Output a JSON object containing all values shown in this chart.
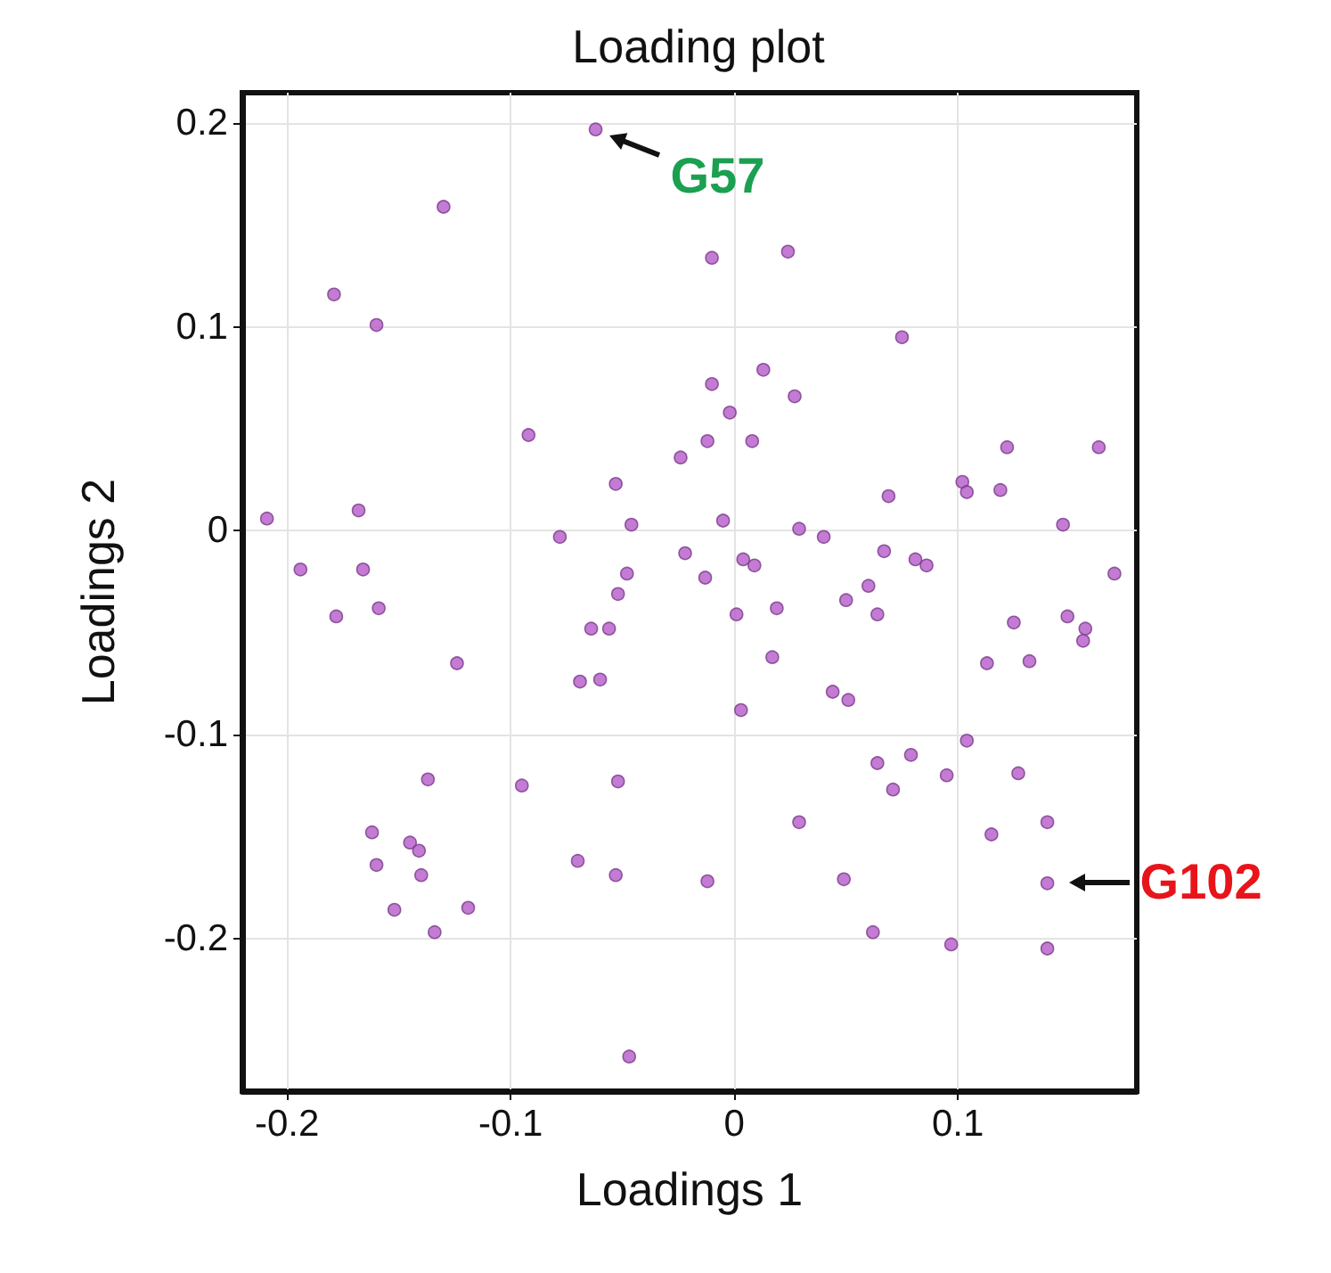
{
  "chart_data": {
    "type": "scatter",
    "title": "Loading plot",
    "xlabel": "Loadings 1",
    "ylabel": "Loadings 2",
    "xlim": [
      -0.22,
      0.18
    ],
    "ylim": [
      -0.275,
      0.215
    ],
    "xticks": [
      -0.2,
      -0.1,
      0,
      0.1
    ],
    "yticks": [
      -0.2,
      -0.1,
      0,
      0.1,
      0.2
    ],
    "grid": true,
    "marker": "circle",
    "annotations": [
      {
        "text": "G57",
        "x": -0.062,
        "y": 0.197
      },
      {
        "text": "G102",
        "x": 0.14,
        "y": -0.173
      }
    ],
    "series": [
      {
        "color": "#b45ac8",
        "x": [
          -0.062,
          -0.13,
          -0.179,
          -0.16,
          -0.092,
          -0.024,
          -0.053,
          -0.209,
          -0.168,
          -0.046,
          -0.078,
          -0.194,
          -0.166,
          -0.022,
          -0.048,
          -0.01,
          0.024,
          0.075,
          -0.01,
          0.013,
          0.027,
          -0.002,
          -0.012,
          0.008,
          0.122,
          0.163,
          0.102,
          0.104,
          0.119,
          0.069,
          0.147,
          -0.005,
          0.029,
          0.04,
          0.067,
          0.081,
          0.086,
          0.004,
          0.009,
          -0.013,
          0.06,
          0.17,
          -0.052,
          -0.178,
          -0.159,
          -0.064,
          -0.056,
          -0.124,
          -0.069,
          -0.06,
          -0.137,
          -0.095,
          -0.052,
          -0.162,
          -0.145,
          -0.141,
          -0.16,
          -0.14,
          -0.07,
          -0.053,
          -0.152,
          -0.119,
          -0.134,
          -0.047,
          0.001,
          0.019,
          0.05,
          0.064,
          0.125,
          0.149,
          0.157,
          0.156,
          0.017,
          0.113,
          0.132,
          0.044,
          0.051,
          0.003,
          0.104,
          0.064,
          0.079,
          0.095,
          0.127,
          0.071,
          0.029,
          0.115,
          0.14,
          -0.012,
          0.049,
          0.14,
          0.062,
          0.097,
          0.14
        ],
        "values": [
          0.197,
          0.159,
          0.116,
          0.101,
          0.047,
          0.036,
          0.023,
          0.006,
          0.01,
          0.003,
          -0.003,
          -0.019,
          -0.019,
          -0.011,
          -0.021,
          0.134,
          0.137,
          0.095,
          0.072,
          0.079,
          0.066,
          0.058,
          0.044,
          0.044,
          0.041,
          0.041,
          0.024,
          0.019,
          0.02,
          0.017,
          0.003,
          0.005,
          0.001,
          -0.003,
          -0.01,
          -0.014,
          -0.017,
          -0.014,
          -0.017,
          -0.023,
          -0.027,
          -0.021,
          -0.031,
          -0.042,
          -0.038,
          -0.048,
          -0.048,
          -0.065,
          -0.074,
          -0.073,
          -0.122,
          -0.125,
          -0.123,
          -0.148,
          -0.153,
          -0.157,
          -0.164,
          -0.169,
          -0.162,
          -0.169,
          -0.186,
          -0.185,
          -0.197,
          -0.258,
          -0.041,
          -0.038,
          -0.034,
          -0.041,
          -0.045,
          -0.042,
          -0.048,
          -0.054,
          -0.062,
          -0.065,
          -0.064,
          -0.079,
          -0.083,
          -0.088,
          -0.103,
          -0.114,
          -0.11,
          -0.12,
          -0.119,
          -0.127,
          -0.143,
          -0.149,
          -0.143,
          -0.172,
          -0.171,
          -0.173,
          -0.197,
          -0.203,
          -0.205
        ]
      }
    ]
  }
}
